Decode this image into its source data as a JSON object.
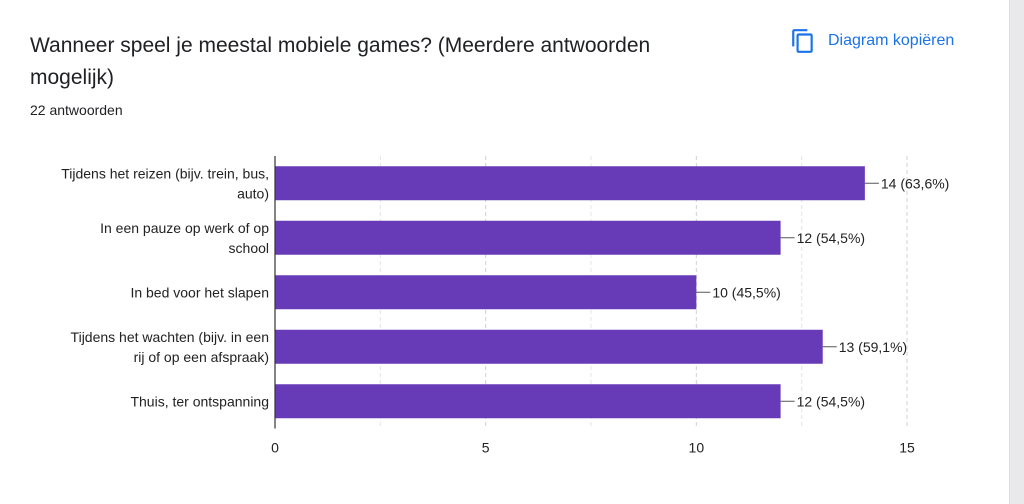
{
  "question": {
    "title": "Wanneer speel je meestal mobiele games? (Meerdere antwoorden mogelijk)",
    "response_count": "22 antwoorden"
  },
  "toolbar": {
    "copy_label": "Diagram kopiëren",
    "copy_icon": "copy-icon"
  },
  "colors": {
    "bar": "#673ab7",
    "accent": "#1a73e8"
  },
  "chart_data": {
    "type": "bar",
    "orientation": "horizontal",
    "categories": [
      [
        "Tijdens het reizen (bijv. trein, bus,",
        "auto)"
      ],
      [
        "In een pauze op werk of op",
        "school"
      ],
      [
        "In bed voor het slapen"
      ],
      [
        "Tijdens het wachten (bijv. in een",
        "rij of op een afspraak)"
      ],
      [
        "Thuis, ter ontspanning"
      ]
    ],
    "values": [
      14,
      12,
      10,
      13,
      12
    ],
    "data_labels": [
      "14 (63,6%)",
      "12 (54,5%)",
      "10 (45,5%)",
      "13 (59,1%)",
      "12 (54,5%)"
    ],
    "xlim": [
      0,
      15
    ],
    "xticks": [
      0,
      5,
      10,
      15
    ],
    "grid": true
  }
}
